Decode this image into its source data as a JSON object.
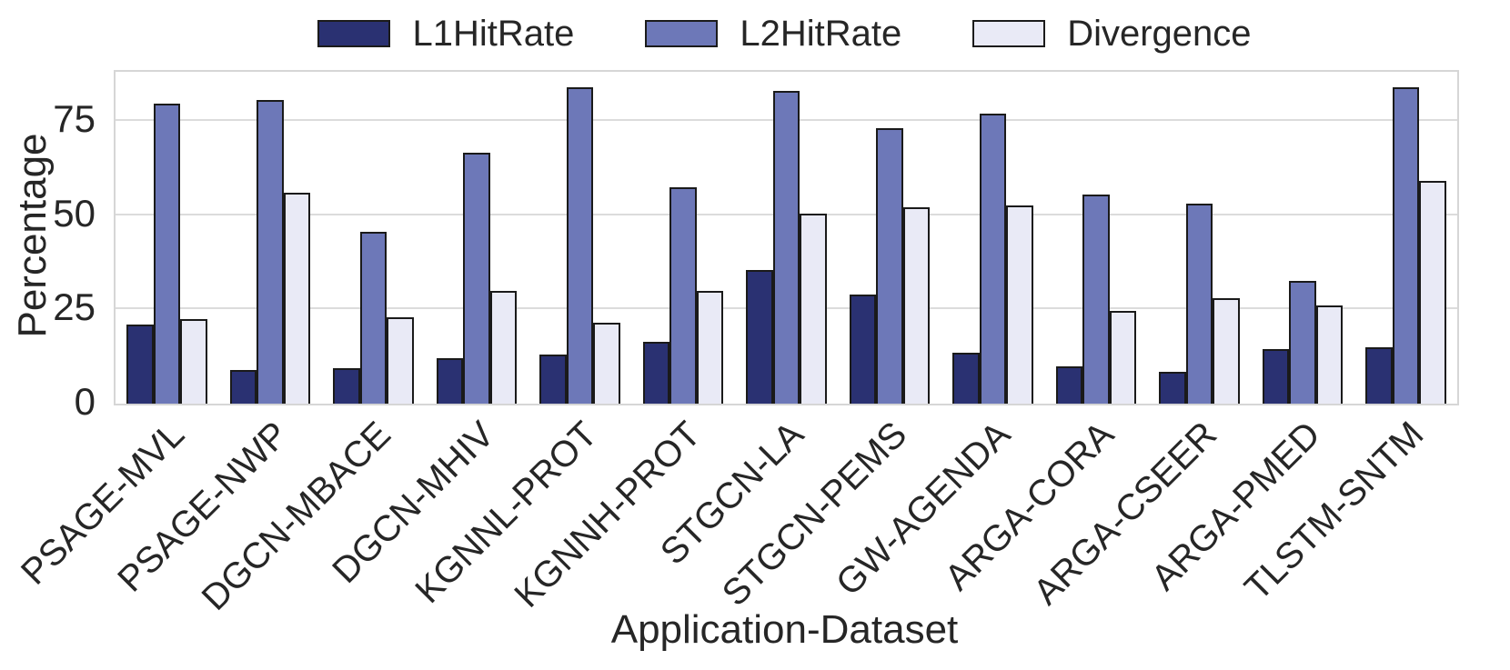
{
  "figure": {
    "background": "#ffffff"
  },
  "legend": {
    "position": "top-center"
  },
  "axes": {
    "ylabel": "Percentage",
    "xlabel": "Application-Dataset"
  },
  "chart_data": {
    "type": "bar",
    "title": "",
    "xlabel": "Application-Dataset",
    "ylabel": "Percentage",
    "ylim": [
      0,
      88
    ],
    "yticks": [
      0,
      25,
      50,
      75
    ],
    "grid": "horizontal",
    "legend_position": "top-center",
    "bar_edge_color": "#1a1a1a",
    "grid_color": "#dcdcdc",
    "categories": [
      "PSAGE-MVL",
      "PSAGE-NWP",
      "DGCN-MBACE",
      "DGCN-MHIV",
      "KGNNL-PROT",
      "KGNNH-PROT",
      "STGCN-LA",
      "STGCN-PEMS",
      "GW-AGENDA",
      "ARGA-CORA",
      "ARGA-CSEER",
      "ARGA-PMED",
      "TLSTM-SNTM"
    ],
    "series": [
      {
        "name": "L1HitRate",
        "color": "#2a3172",
        "values": [
          21,
          9,
          9.5,
          12,
          13,
          16.5,
          35.5,
          29,
          13.5,
          10,
          8.5,
          14.5,
          15
        ]
      },
      {
        "name": "L2HitRate",
        "color": "#6d78b8",
        "values": [
          79.5,
          80.5,
          45.5,
          66.5,
          84,
          57.5,
          83,
          73,
          77,
          55.5,
          53,
          32.5,
          84
        ]
      },
      {
        "name": "Divergence",
        "color": "#e9eaf6",
        "values": [
          22.5,
          56,
          23,
          30,
          21.5,
          30,
          50.5,
          52,
          52.5,
          24.5,
          28,
          26,
          59
        ]
      }
    ]
  }
}
